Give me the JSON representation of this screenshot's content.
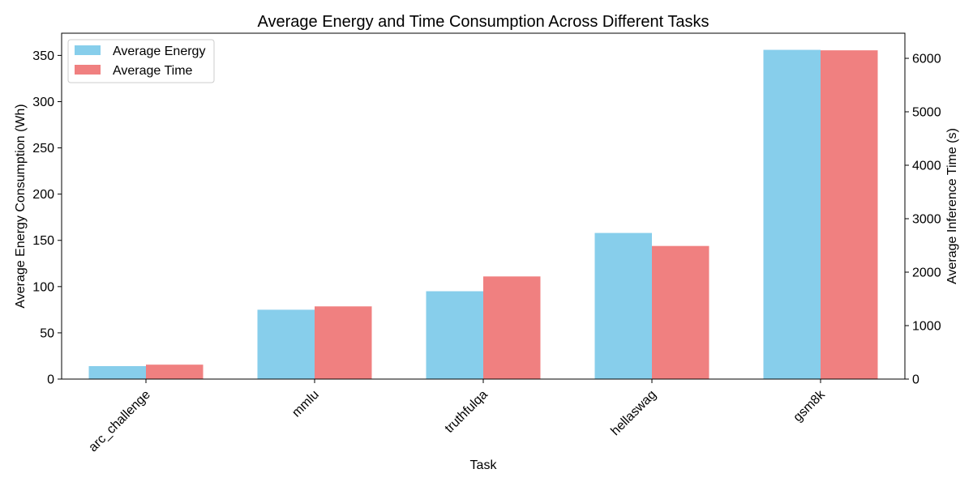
{
  "chart_data": {
    "type": "bar",
    "title": "Average Energy and Time Consumption Across Different Tasks",
    "xlabel": "Task",
    "ylabel_left": "Average Energy Consumption (Wh)",
    "ylabel_right": "Average Inference Time (s)",
    "categories": [
      "arc_challenge",
      "mmlu",
      "truthfulqa",
      "hellaswag",
      "gsm8k"
    ],
    "series": [
      {
        "name": "Average Energy",
        "axis": "left",
        "color": "#87ceeb",
        "values": [
          14,
          75,
          95,
          158,
          356
        ]
      },
      {
        "name": "Average Time",
        "axis": "right",
        "color": "#f08080",
        "values": [
          270,
          1360,
          1920,
          2490,
          6150
        ]
      }
    ],
    "ylim_left": [
      0,
      374
    ],
    "ylim_right": [
      0,
      6470
    ],
    "yticks_left": [
      0,
      50,
      100,
      150,
      200,
      250,
      300,
      350
    ],
    "yticks_right": [
      0,
      1000,
      2000,
      3000,
      4000,
      5000,
      6000
    ],
    "legend_position": "upper-left",
    "grid": false
  }
}
